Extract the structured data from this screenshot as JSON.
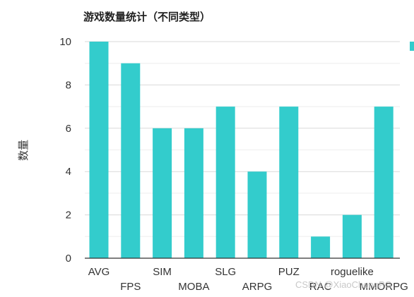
{
  "chart_data": {
    "type": "bar",
    "title": "游戏数量统计（不同类型）",
    "xlabel": "",
    "ylabel": "数量",
    "categories": [
      "AVG",
      "FPS",
      "SIM",
      "MOBA",
      "SLG",
      "ARPG",
      "PUZ",
      "RAC",
      "roguelike",
      "MMORPG"
    ],
    "values": [
      10,
      9,
      6,
      6,
      7,
      4,
      7,
      1,
      2,
      7
    ],
    "ylim": [
      0,
      10
    ],
    "yticks": [
      "0",
      "2",
      "4",
      "6",
      "8",
      "10"
    ],
    "grid": true,
    "legend": "top-right",
    "colors": {
      "bar": "#33cccc",
      "grid_major": "#d9d9d9",
      "grid_minor": "#eeeeee",
      "axis": "#333333"
    }
  },
  "watermark": "CSDN @XiaoChengPG"
}
